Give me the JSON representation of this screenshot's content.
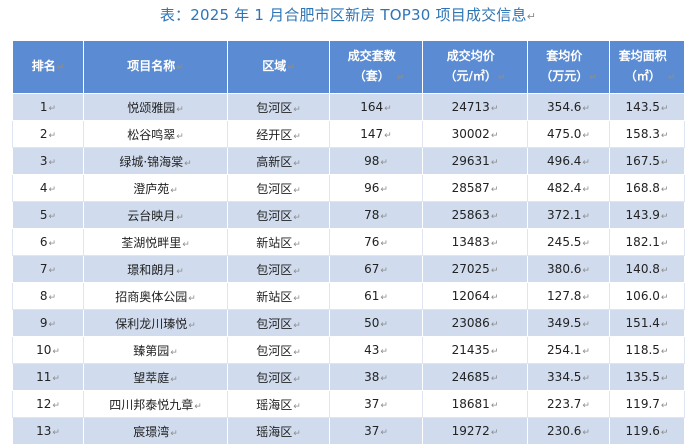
{
  "title": "表：2025 年 1 月合肥市区新房 TOP30 项目成交信息",
  "mark": "↵",
  "headers": [
    {
      "line1": "排名",
      "line2": ""
    },
    {
      "line1": "项目名称",
      "line2": ""
    },
    {
      "line1": "区域",
      "line2": ""
    },
    {
      "line1": "成交套数",
      "line2": "（套）"
    },
    {
      "line1": "成交均价",
      "line2": "（元/㎡）"
    },
    {
      "line1": "套均价",
      "line2": "（万元）"
    },
    {
      "line1": "套均面积",
      "line2": "（㎡）"
    }
  ],
  "rows": [
    {
      "rank": "1",
      "name": "悦颂雅园",
      "district": "包河区",
      "units": "164",
      "avg_price": "24713",
      "unit_price": "354.6",
      "avg_area": "143.5"
    },
    {
      "rank": "2",
      "name": "松谷鸣翠",
      "district": "经开区",
      "units": "147",
      "avg_price": "30002",
      "unit_price": "475.0",
      "avg_area": "158.3"
    },
    {
      "rank": "3",
      "name": "绿城·锦海棠",
      "district": "高新区",
      "units": "98",
      "avg_price": "29631",
      "unit_price": "496.4",
      "avg_area": "167.5"
    },
    {
      "rank": "4",
      "name": "澄庐苑",
      "district": "包河区",
      "units": "96",
      "avg_price": "28587",
      "unit_price": "482.4",
      "avg_area": "168.8"
    },
    {
      "rank": "5",
      "name": "云台映月",
      "district": "包河区",
      "units": "78",
      "avg_price": "25863",
      "unit_price": "372.1",
      "avg_area": "143.9"
    },
    {
      "rank": "6",
      "name": "荃湖悦畔里",
      "district": "新站区",
      "units": "76",
      "avg_price": "13483",
      "unit_price": "245.5",
      "avg_area": "182.1"
    },
    {
      "rank": "7",
      "name": "璟和朗月",
      "district": "包河区",
      "units": "67",
      "avg_price": "27025",
      "unit_price": "380.6",
      "avg_area": "140.8"
    },
    {
      "rank": "8",
      "name": "招商奥体公园",
      "district": "新站区",
      "units": "61",
      "avg_price": "12064",
      "unit_price": "127.8",
      "avg_area": "106.0"
    },
    {
      "rank": "9",
      "name": "保利龙川瑧悦",
      "district": "包河区",
      "units": "50",
      "avg_price": "23086",
      "unit_price": "349.5",
      "avg_area": "151.4"
    },
    {
      "rank": "10",
      "name": "臻第园",
      "district": "包河区",
      "units": "43",
      "avg_price": "21435",
      "unit_price": "254.1",
      "avg_area": "118.5"
    },
    {
      "rank": "11",
      "name": "望萃庭",
      "district": "包河区",
      "units": "38",
      "avg_price": "24685",
      "unit_price": "334.5",
      "avg_area": "135.5"
    },
    {
      "rank": "12",
      "name": "四川邦泰悦九章",
      "district": "瑶海区",
      "units": "37",
      "avg_price": "18681",
      "unit_price": "223.7",
      "avg_area": "119.7"
    },
    {
      "rank": "13",
      "name": "宸璟湾",
      "district": "瑶海区",
      "units": "37",
      "avg_price": "19272",
      "unit_price": "230.6",
      "avg_area": "119.6"
    }
  ]
}
